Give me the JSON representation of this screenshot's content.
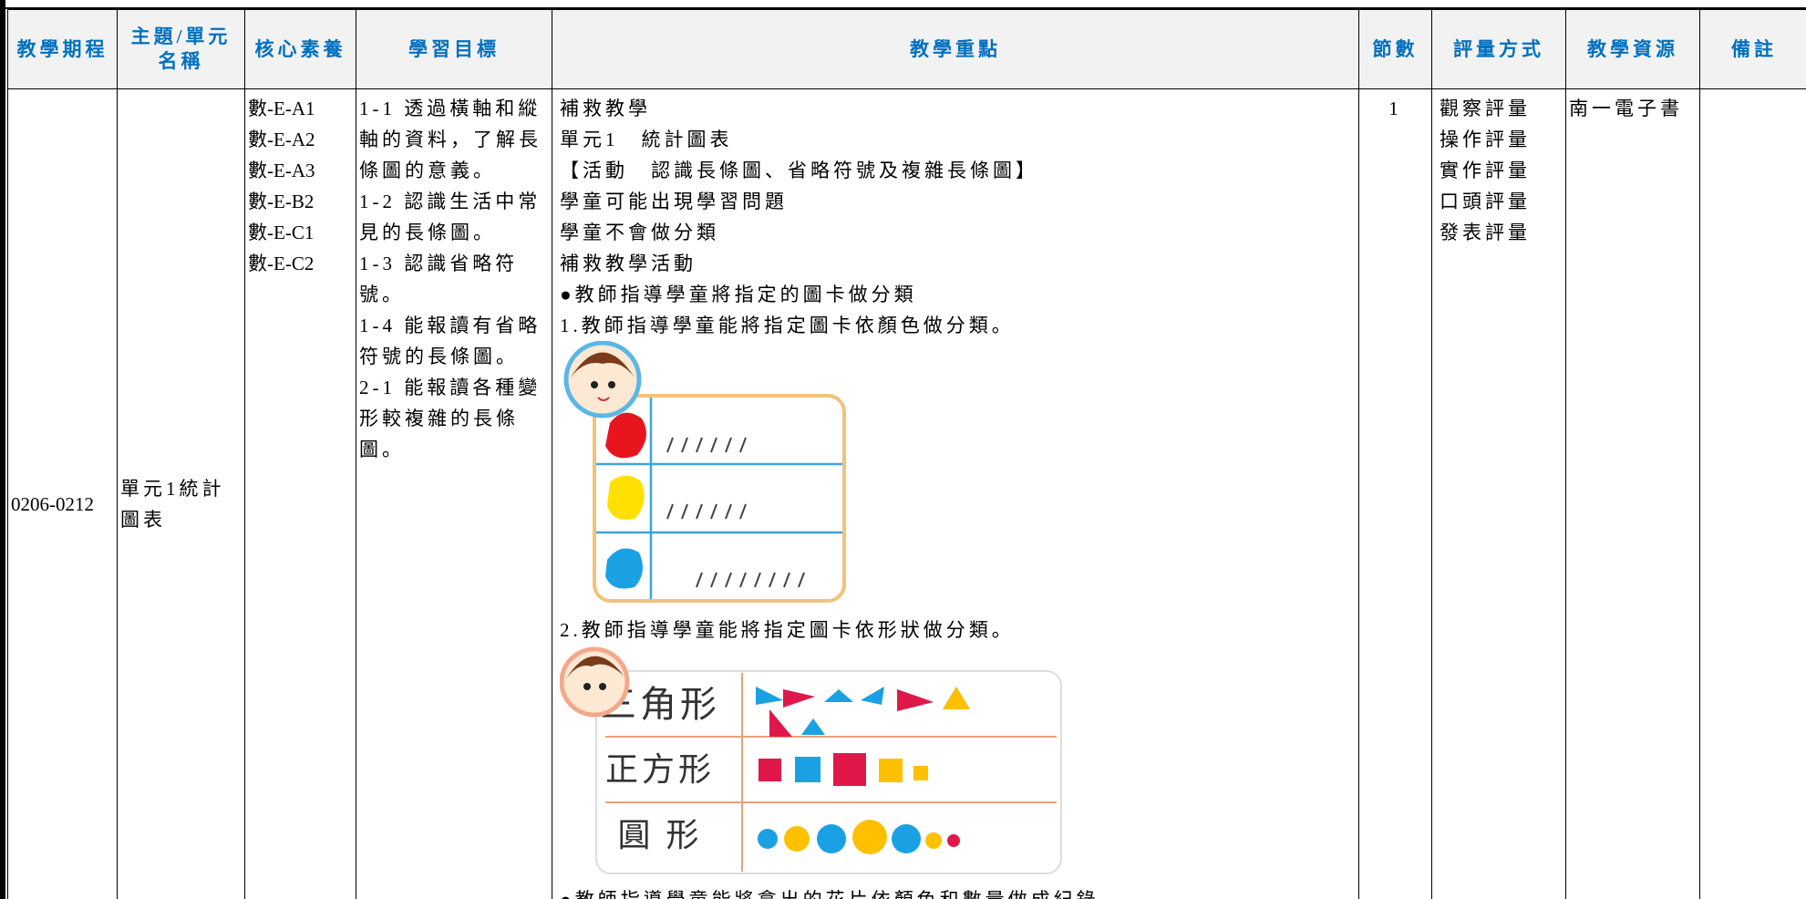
{
  "table": {
    "headers": [
      "教學期程",
      "主題/單元名稱",
      "核心素養",
      "學習目標",
      "教學重點",
      "節數",
      "評量方式",
      "教學資源",
      "備註"
    ],
    "row": {
      "period": "0206-0212",
      "unit": "單元1統計圖表",
      "competencies": [
        "數-E-A1",
        "數-E-A2",
        "數-E-A3",
        "數-E-B2",
        "數-E-C1",
        "數-E-C2"
      ],
      "objectives": [
        "1-1 透過橫軸和縱軸的資料，了解長條圖的意義。",
        "1-2 認識生活中常見的長條圖。",
        "1-3 認識省略符號。",
        "1-4 能報讀有省略符號的長條圖。",
        "2-1 能報讀各種變形較複雜的長條圖。"
      ],
      "focus": [
        "補救教學",
        "單元1　統計圖表",
        "【活動　認識長條圖、省略符號及複雜長條圖】",
        "學童可能出現學習問題",
        "學童不會做分類",
        "補救教學活動",
        "●教師指導學童將指定的圖卡做分類",
        "1.教師指導學童能將指定圖卡依顏色做分類。",
        "2.教師指導學童能將指定圖卡依形狀做分類。",
        "●教師指導學童能將拿出的花片依顏色和數量做成紀錄"
      ],
      "shape_card_labels": [
        "三角形",
        "正方形",
        "圓 形"
      ],
      "lessons": "1",
      "assessment": [
        "觀察評量",
        "操作評量",
        "實作評量",
        "口頭評量",
        "發表評量"
      ],
      "resources": "南一電子書"
    }
  }
}
